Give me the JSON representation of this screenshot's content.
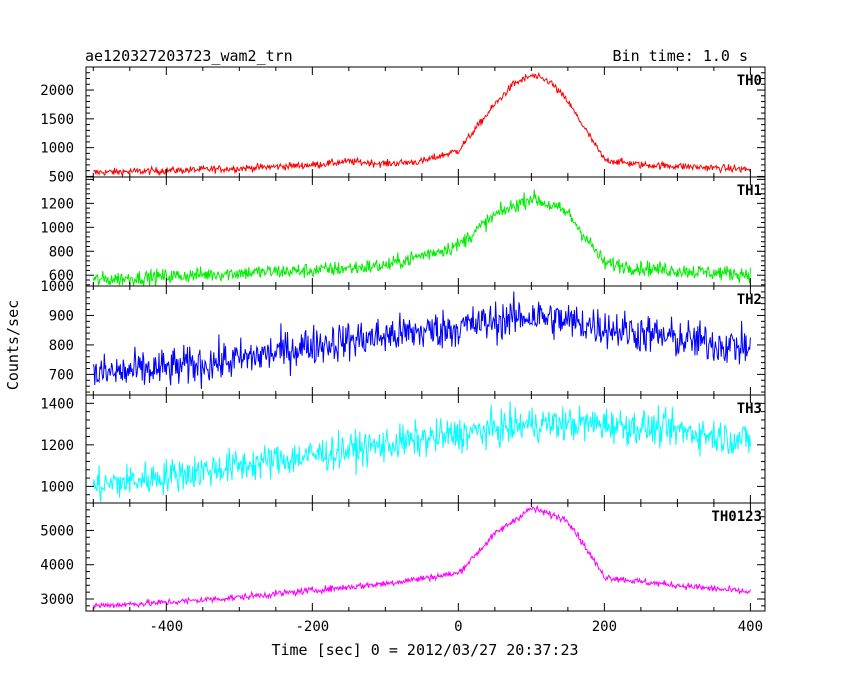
{
  "header": {
    "title": "ae120327203723_wam2_trn",
    "bin_time": "Bin time: 1.0 s"
  },
  "chart_data": {
    "type": "line",
    "title": "ae120327203723_wam2_trn",
    "subtitle": "Bin time: 1.0 s",
    "xlabel": "Time [sec] 0 = 2012/03/27 20:37:23",
    "ylabel": "Counts/sec",
    "xlim": [
      -510,
      420
    ],
    "xticks": [
      -400,
      -200,
      0,
      200,
      400
    ],
    "xtick_labels": [
      "-400",
      "-200",
      "0",
      "200",
      "400"
    ],
    "grid": false,
    "panels": [
      {
        "name": "TH0",
        "color": "#ff0000",
        "ylim": [
          490,
          2400
        ],
        "yticks": [
          500,
          1000,
          1500,
          2000
        ],
        "ytick_labels": [
          "500",
          "1000",
          "1500",
          "2000"
        ],
        "x": [
          -500,
          -400,
          -300,
          -200,
          -150,
          -100,
          -50,
          0,
          50,
          75,
          100,
          125,
          150,
          200,
          250,
          300,
          350,
          400
        ],
        "y": [
          570,
          600,
          640,
          700,
          760,
          720,
          760,
          950,
          1750,
          2100,
          2250,
          2150,
          1800,
          790,
          700,
          680,
          650,
          620
        ],
        "noise": 45
      },
      {
        "name": "TH1",
        "color": "#00ee00",
        "ylim": [
          510,
          1420
        ],
        "yticks": [
          600,
          800,
          1000,
          1200
        ],
        "ytick_labels": [
          "600",
          "800",
          "1000",
          "1200"
        ],
        "x": [
          -500,
          -400,
          -300,
          -200,
          -100,
          0,
          50,
          100,
          150,
          200,
          250,
          300,
          350,
          400
        ],
        "y": [
          560,
          590,
          620,
          640,
          680,
          850,
          1100,
          1250,
          1120,
          700,
          660,
          640,
          620,
          610
        ],
        "noise": 45
      },
      {
        "name": "TH2",
        "color": "#0000ff",
        "ylim": [
          630,
          1000
        ],
        "yticks": [
          700,
          800,
          900,
          1000
        ],
        "ytick_labels": [
          "700",
          "800",
          "900",
          "1000"
        ],
        "x": [
          -500,
          -400,
          -300,
          -200,
          -100,
          0,
          100,
          200,
          300,
          400
        ],
        "y": [
          700,
          720,
          750,
          800,
          830,
          860,
          900,
          860,
          820,
          790
        ],
        "noise": 48
      },
      {
        "name": "TH3",
        "color": "#00ffff",
        "ylim": [
          920,
          1440
        ],
        "yticks": [
          1000,
          1200,
          1400
        ],
        "ytick_labels": [
          "1000",
          "1200",
          "1400"
        ],
        "x": [
          -500,
          -400,
          -300,
          -200,
          -100,
          0,
          100,
          200,
          300,
          400
        ],
        "y": [
          1000,
          1050,
          1100,
          1150,
          1200,
          1250,
          1300,
          1300,
          1270,
          1220
        ],
        "noise": 60
      },
      {
        "name": "TH0123",
        "color": "#ff00ff",
        "ylim": [
          2650,
          5800
        ],
        "yticks": [
          3000,
          4000,
          5000
        ],
        "ytick_labels": [
          "3000",
          "4000",
          "5000"
        ],
        "x": [
          -500,
          -400,
          -300,
          -200,
          -100,
          0,
          50,
          100,
          150,
          200,
          250,
          300,
          350,
          400
        ],
        "y": [
          2800,
          2900,
          3050,
          3250,
          3450,
          3750,
          4900,
          5650,
          5300,
          3650,
          3500,
          3400,
          3300,
          3200
        ],
        "noise": 70
      }
    ]
  }
}
